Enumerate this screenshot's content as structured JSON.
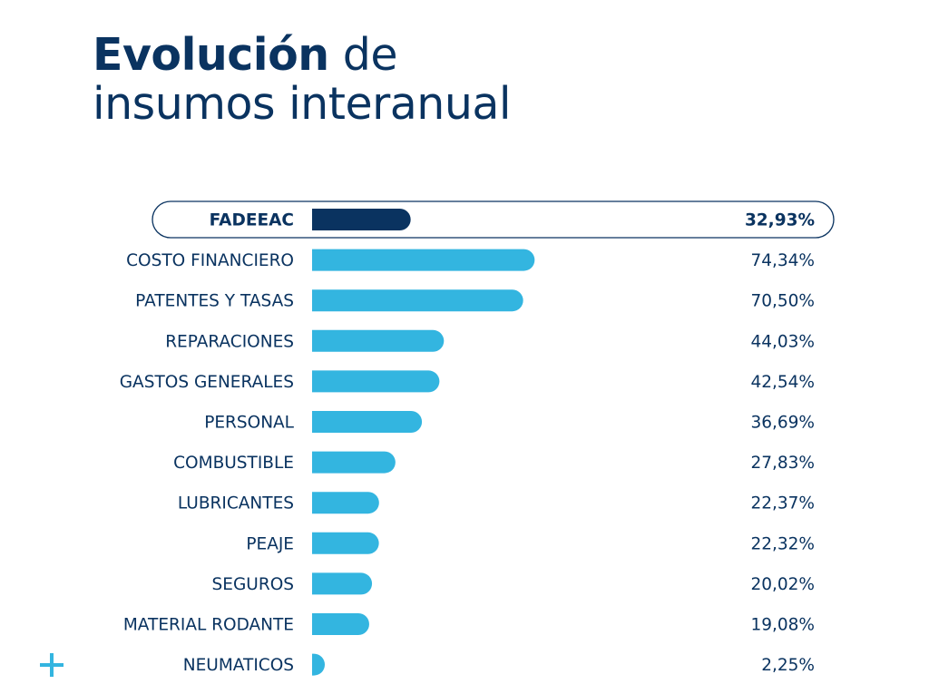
{
  "title": {
    "strong": "Evolución",
    "rest_line1": " de",
    "line2": "insumos interanual"
  },
  "colors": {
    "highlight_bar": "#0a3360",
    "bar": "#33b5e0",
    "text": "#0a3360",
    "highlight_border": "#0a3360",
    "decoration": "#33b5e0"
  },
  "decoration_icon": "plus-icon",
  "chart_data": {
    "type": "bar",
    "orientation": "horizontal",
    "title": "Evolución de insumos interanual",
    "xlabel": "",
    "ylabel": "",
    "xlim": [
      0,
      100
    ],
    "grid": false,
    "highlight_category": "FADEEAC",
    "categories": [
      "FADEEAC",
      "COSTO FINANCIERO",
      "PATENTES Y TASAS",
      "REPARACIONES",
      "GASTOS GENERALES",
      "PERSONAL",
      "COMBUSTIBLE",
      "LUBRICANTES",
      "PEAJE",
      "SEGUROS",
      "MATERIAL RODANTE",
      "NEUMATICOS"
    ],
    "values": [
      32.93,
      74.34,
      70.5,
      44.03,
      42.54,
      36.69,
      27.83,
      22.37,
      22.32,
      20.02,
      19.08,
      2.25
    ],
    "value_labels": [
      "32,93%",
      "74,34%",
      "70,50%",
      "44,03%",
      "42,54%",
      "36,69%",
      "27,83%",
      "22,37%",
      "22,32%",
      "20,02%",
      "19,08%",
      "2,25%"
    ]
  }
}
